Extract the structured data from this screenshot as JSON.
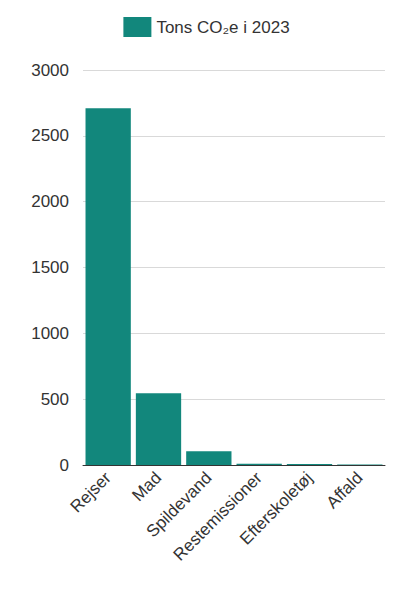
{
  "chart_data": {
    "type": "bar",
    "categories": [
      "Rejser",
      "Mad",
      "Spildevand",
      "Restemissioner",
      "Efterskoletøj",
      "Affald"
    ],
    "series": [
      {
        "name": "Tons CO₂e i 2023",
        "color": "#12877c",
        "values": [
          2710,
          545,
          105,
          10,
          8,
          3
        ]
      }
    ],
    "ylim": [
      0,
      3000
    ],
    "yticks": [
      0,
      500,
      1000,
      1500,
      2000,
      2500,
      3000
    ],
    "grid": true,
    "legend": "top"
  }
}
